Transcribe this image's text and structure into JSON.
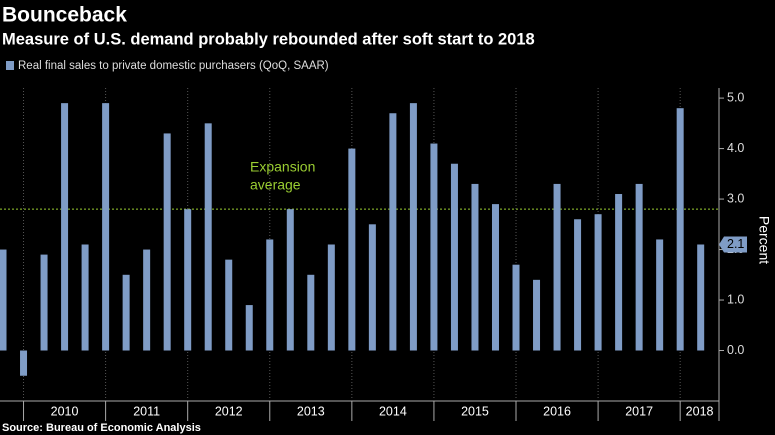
{
  "chart_data": {
    "type": "bar",
    "title": "Bounceback",
    "subtitle": "Measure of U.S. demand probably rebounded after soft start to 2018",
    "source": "Source: Bureau of Economic Analysis",
    "y_axis_label": "Percent",
    "categories": [
      null,
      null,
      null,
      null,
      null,
      null,
      null,
      null,
      null,
      null,
      null,
      null,
      null,
      null,
      null,
      null,
      null,
      null,
      null,
      null,
      null,
      null,
      null,
      null,
      null,
      null,
      null,
      null,
      null,
      null,
      null,
      null,
      null,
      null,
      null
    ],
    "year_labels": [
      "2010",
      "2011",
      "2012",
      "2013",
      "2014",
      "2015",
      "2016",
      "2017",
      "2018"
    ],
    "series": [
      {
        "name": "Real final sales to private domestic purchasers (QoQ, SAAR)",
        "color": "#7f9cc6",
        "values": [
          2.0,
          -0.5,
          1.9,
          4.9,
          2.1,
          4.9,
          1.5,
          2.0,
          4.3,
          2.8,
          4.5,
          1.8,
          0.9,
          2.2,
          2.8,
          1.5,
          2.1,
          4.0,
          2.5,
          4.7,
          4.9,
          4.1,
          3.7,
          3.3,
          2.9,
          1.7,
          1.4,
          3.3,
          2.6,
          2.7,
          3.1,
          3.3,
          2.2,
          4.8,
          2.1
        ]
      }
    ],
    "reference_line": {
      "value": 2.8,
      "label_lines": [
        "Expansion",
        "average"
      ],
      "color": "#9acd32"
    },
    "ylim": [
      -1,
      5.2
    ],
    "yticks": [
      {
        "value": 0,
        "label": "0.0"
      },
      {
        "value": 1,
        "label": "1.0"
      },
      {
        "value": 2,
        "label": "2.0"
      },
      {
        "value": 3,
        "label": "3.0"
      },
      {
        "value": 4,
        "label": "4.0"
      },
      {
        "value": 5,
        "label": "5.0"
      }
    ],
    "grid": true
  }
}
